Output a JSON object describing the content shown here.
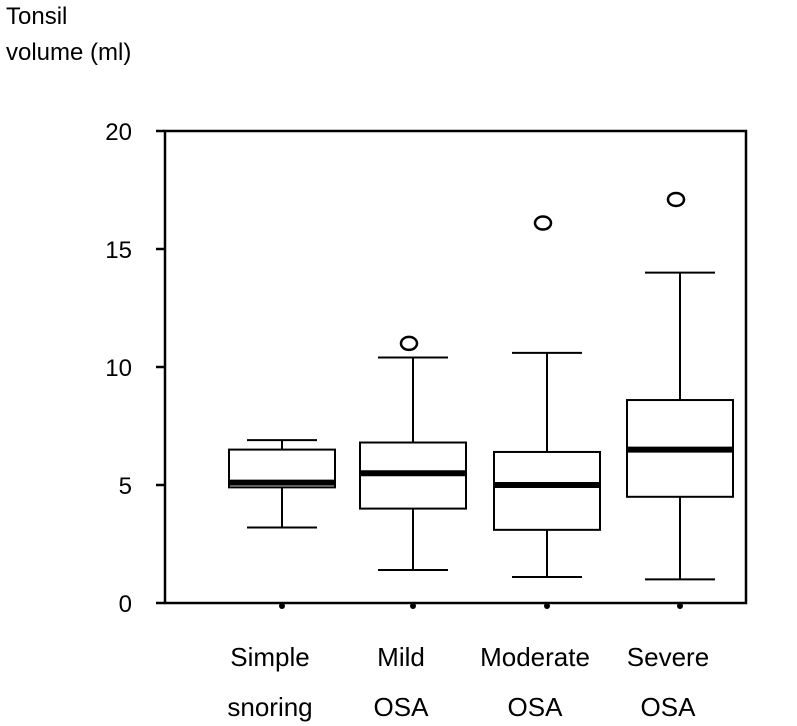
{
  "chart_data": {
    "type": "boxplot",
    "ylabel_lines": [
      "Tonsil",
      "volume (ml)"
    ],
    "ylim": [
      0,
      20
    ],
    "yticks": [
      0,
      5,
      10,
      15,
      20
    ],
    "categories": [
      {
        "line1": "Simple",
        "line2": "snoring"
      },
      {
        "line1": "Mild",
        "line2": "OSA"
      },
      {
        "line1": "Moderate",
        "line2": "OSA"
      },
      {
        "line1": "Severe",
        "line2": "OSA"
      }
    ],
    "boxes": [
      {
        "whisker_low": 3.2,
        "q1": 4.9,
        "median": 5.1,
        "q3": 6.5,
        "whisker_high": 6.9,
        "outliers": []
      },
      {
        "whisker_low": 1.4,
        "q1": 4.0,
        "median": 5.5,
        "q3": 6.8,
        "whisker_high": 10.4,
        "outliers": [
          11.0
        ]
      },
      {
        "whisker_low": 1.1,
        "q1": 3.1,
        "median": 5.0,
        "q3": 6.4,
        "whisker_high": 10.6,
        "outliers": [
          16.1
        ]
      },
      {
        "whisker_low": 1.0,
        "q1": 4.5,
        "median": 6.5,
        "q3": 8.6,
        "whisker_high": 14.0,
        "outliers": [
          17.1
        ]
      }
    ]
  }
}
